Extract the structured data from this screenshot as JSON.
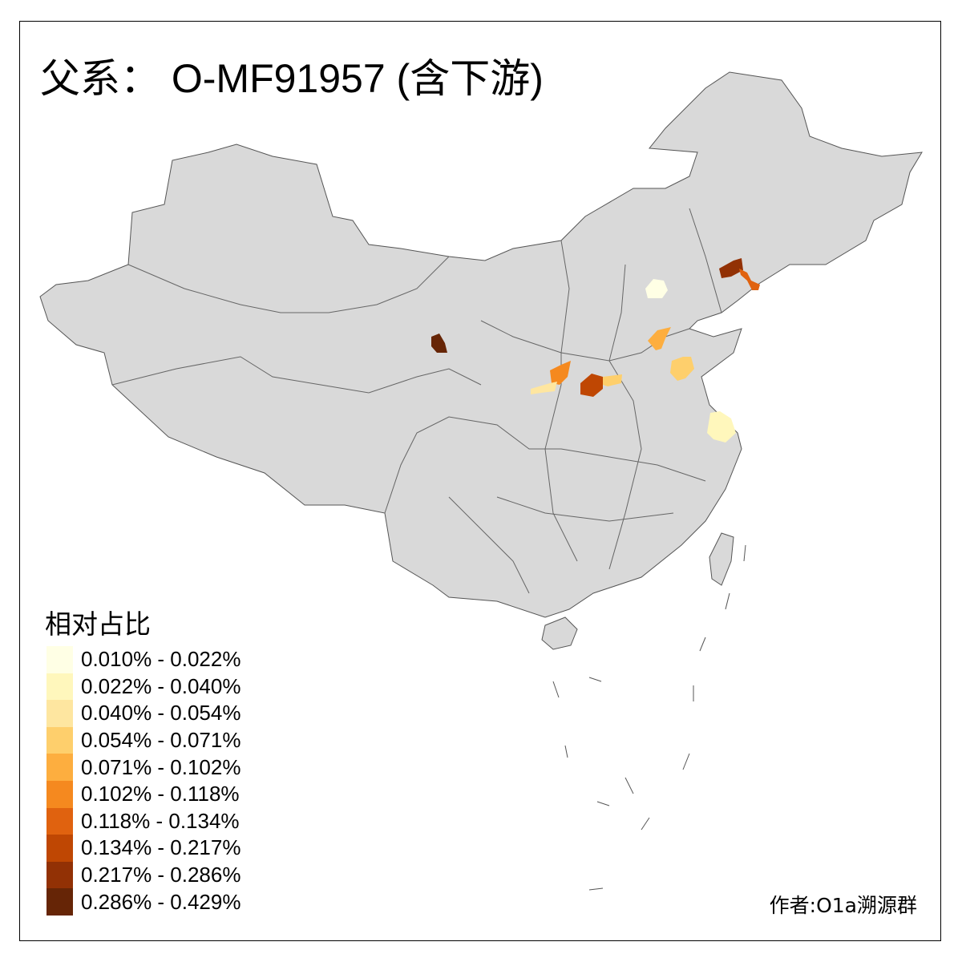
{
  "title": "父系： O-MF91957 (含下游)",
  "legend": {
    "title": "相对占比",
    "items": [
      {
        "label": "0.010% - 0.022%",
        "color": "#FFFFE5"
      },
      {
        "label": "0.022% - 0.040%",
        "color": "#FFF7BC"
      },
      {
        "label": "0.040% - 0.054%",
        "color": "#FEE6A0"
      },
      {
        "label": "0.054% - 0.071%",
        "color": "#FECF6C"
      },
      {
        "label": "0.071% - 0.102%",
        "color": "#FDAE3F"
      },
      {
        "label": "0.102% - 0.118%",
        "color": "#F5891F"
      },
      {
        "label": "0.118% - 0.134%",
        "color": "#E0620F"
      },
      {
        "label": "0.134% - 0.217%",
        "color": "#BF4703"
      },
      {
        "label": "0.217% - 0.286%",
        "color": "#923105"
      },
      {
        "label": "0.286% - 0.429%",
        "color": "#662506"
      }
    ]
  },
  "credit": "作者:O1a溯源群",
  "map": {
    "base_color": "#D9D9D9",
    "border_color": "#666666"
  }
}
